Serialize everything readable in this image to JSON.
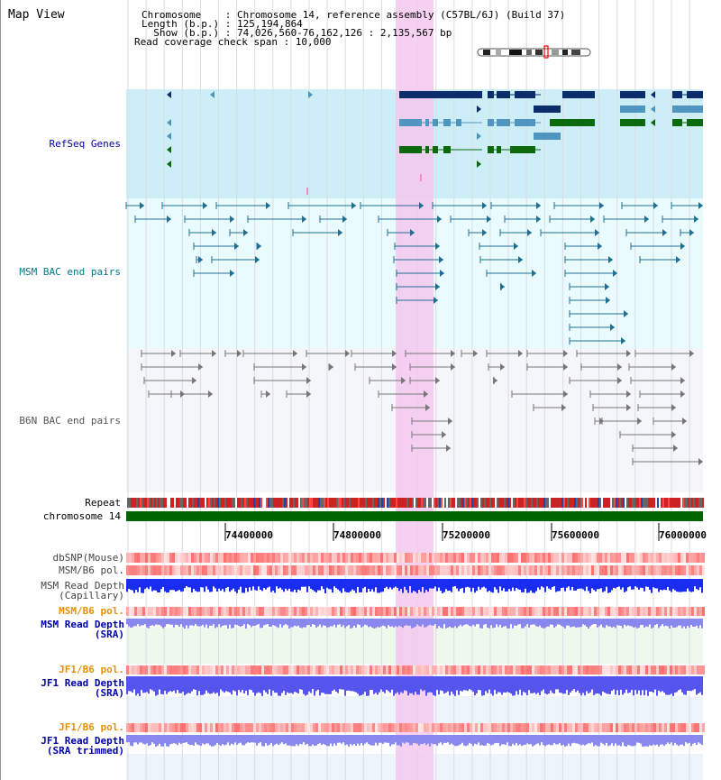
{
  "map_view": {
    "title": "Map View"
  },
  "info": {
    "chromosome": "Chromosome    : Chromosome 14, reference assembly (C57BL/6J) (Build 37)",
    "length": "Length (b.p.) : 125,194,864",
    "show": "  Show (b.p.) : 74,026,560-76,162,126 : 2,135,567 bp",
    "coverage": "Read coverage check span : 10,000"
  },
  "tracks": {
    "refseq": "RefSeq Genes",
    "msm_bac": "MSM BAC end pairs",
    "b6n_bac": "B6N BAC end pairs",
    "repeat": "Repeat",
    "chromosome": "chromosome 14",
    "dbsnp": "dbSNP(Mouse)",
    "msm_b6_pol_1": "MSM/B6 pol.",
    "msm_depth_cap": "MSM Read Depth\n(Capillary)",
    "msm_b6_pol_2": "MSM/B6 pol.",
    "msm_depth_sra": "MSM Read Depth\n(SRA)",
    "jf1_b6_pol_1": "JF1/B6 pol.",
    "jf1_depth_sra": "JF1 Read Depth\n(SRA)",
    "jf1_b6_pol_2": "JF1/B6 pol.",
    "jf1_depth_trim": "JF1 Read Depth\n(SRA trimmed)"
  },
  "axis": {
    "ticks": [
      "74400000",
      "74800000",
      "75200000",
      "75600000",
      "76000000"
    ]
  },
  "colors": {
    "refseq_dark": "#0b2d6b",
    "refseq_light": "#4f95c0",
    "refseq_green": "#0c6a0c",
    "msm_line": "#1f6f93",
    "b6n_line": "#777777",
    "chromosome_green": "#006400",
    "highlight": "#f3c8ef",
    "label_blue": "#0000aa",
    "label_teal": "#007788",
    "label_orange": "#e89000"
  }
}
